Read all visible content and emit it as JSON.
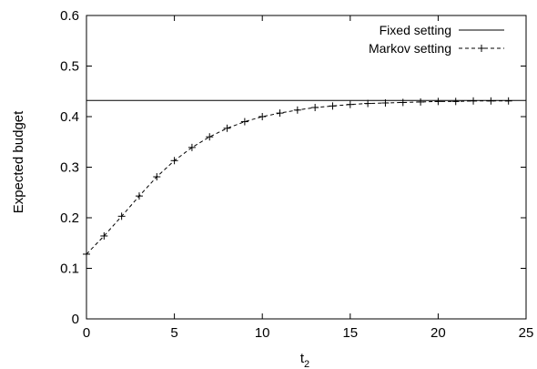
{
  "chart_data": {
    "type": "line",
    "title": "",
    "xlabel": "t",
    "xlabel_subscript": "2",
    "ylabel": "Expected budget",
    "xlim": [
      0,
      25
    ],
    "ylim": [
      0,
      0.6
    ],
    "x_ticks": [
      0,
      5,
      10,
      15,
      20,
      25
    ],
    "x_tick_labels": [
      "0",
      "5",
      "10",
      "15",
      "20",
      "25"
    ],
    "y_ticks": [
      0,
      0.1,
      0.2,
      0.3,
      0.4,
      0.5,
      0.6
    ],
    "y_tick_labels": [
      "0",
      "0.1",
      "0.2",
      "0.3",
      "0.4",
      "0.5",
      "0.6"
    ],
    "grid": false,
    "legend_position": "top-right",
    "colors": {
      "line": "#000000",
      "frame": "#000000"
    },
    "series": [
      {
        "name": "Fixed setting",
        "style": "solid",
        "marker": "none",
        "x": [
          0,
          25
        ],
        "y": [
          0.432,
          0.432
        ]
      },
      {
        "name": "Markov setting",
        "style": "dashed",
        "marker": "plus",
        "x": [
          0,
          1,
          2,
          3,
          4,
          5,
          6,
          7,
          8,
          9,
          10,
          11,
          12,
          13,
          14,
          15,
          16,
          17,
          18,
          19,
          20,
          21,
          22,
          23,
          24
        ],
        "y": [
          0.128,
          0.164,
          0.203,
          0.243,
          0.281,
          0.313,
          0.339,
          0.36,
          0.377,
          0.39,
          0.4,
          0.407,
          0.413,
          0.418,
          0.421,
          0.424,
          0.426,
          0.427,
          0.428,
          0.429,
          0.43,
          0.43,
          0.431,
          0.431,
          0.431
        ]
      }
    ]
  }
}
